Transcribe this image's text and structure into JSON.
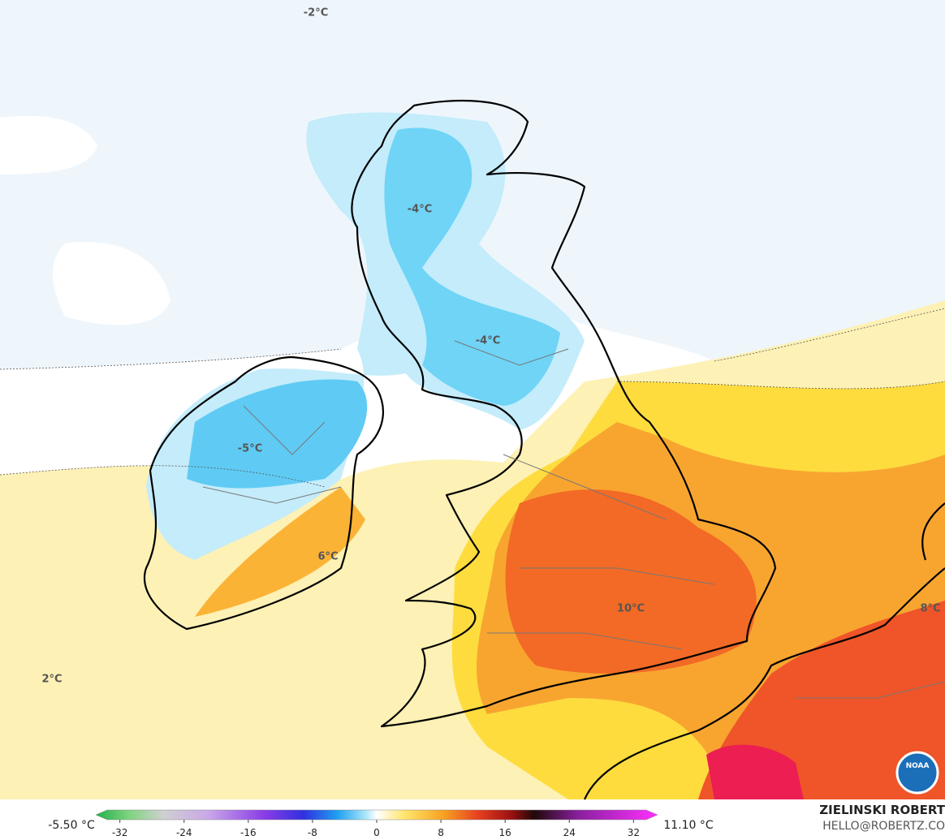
{
  "map": {
    "labels": [
      "-2°C",
      "-4°C",
      "-4°C",
      "-5°C",
      "6°C",
      "10°C",
      "8°C",
      "2°C"
    ],
    "logo": "NOAA"
  },
  "colorbar": {
    "min_label": "-5.50 °C",
    "max_label": "11.10 °C",
    "range": [
      -35,
      35
    ],
    "ticks": [
      -32,
      -24,
      -16,
      -8,
      0,
      8,
      16,
      24,
      32
    ]
  },
  "credit": {
    "author": "ZIELINSKI ROBERT",
    "email": "HELLO@ROBERTZ.CO"
  }
}
